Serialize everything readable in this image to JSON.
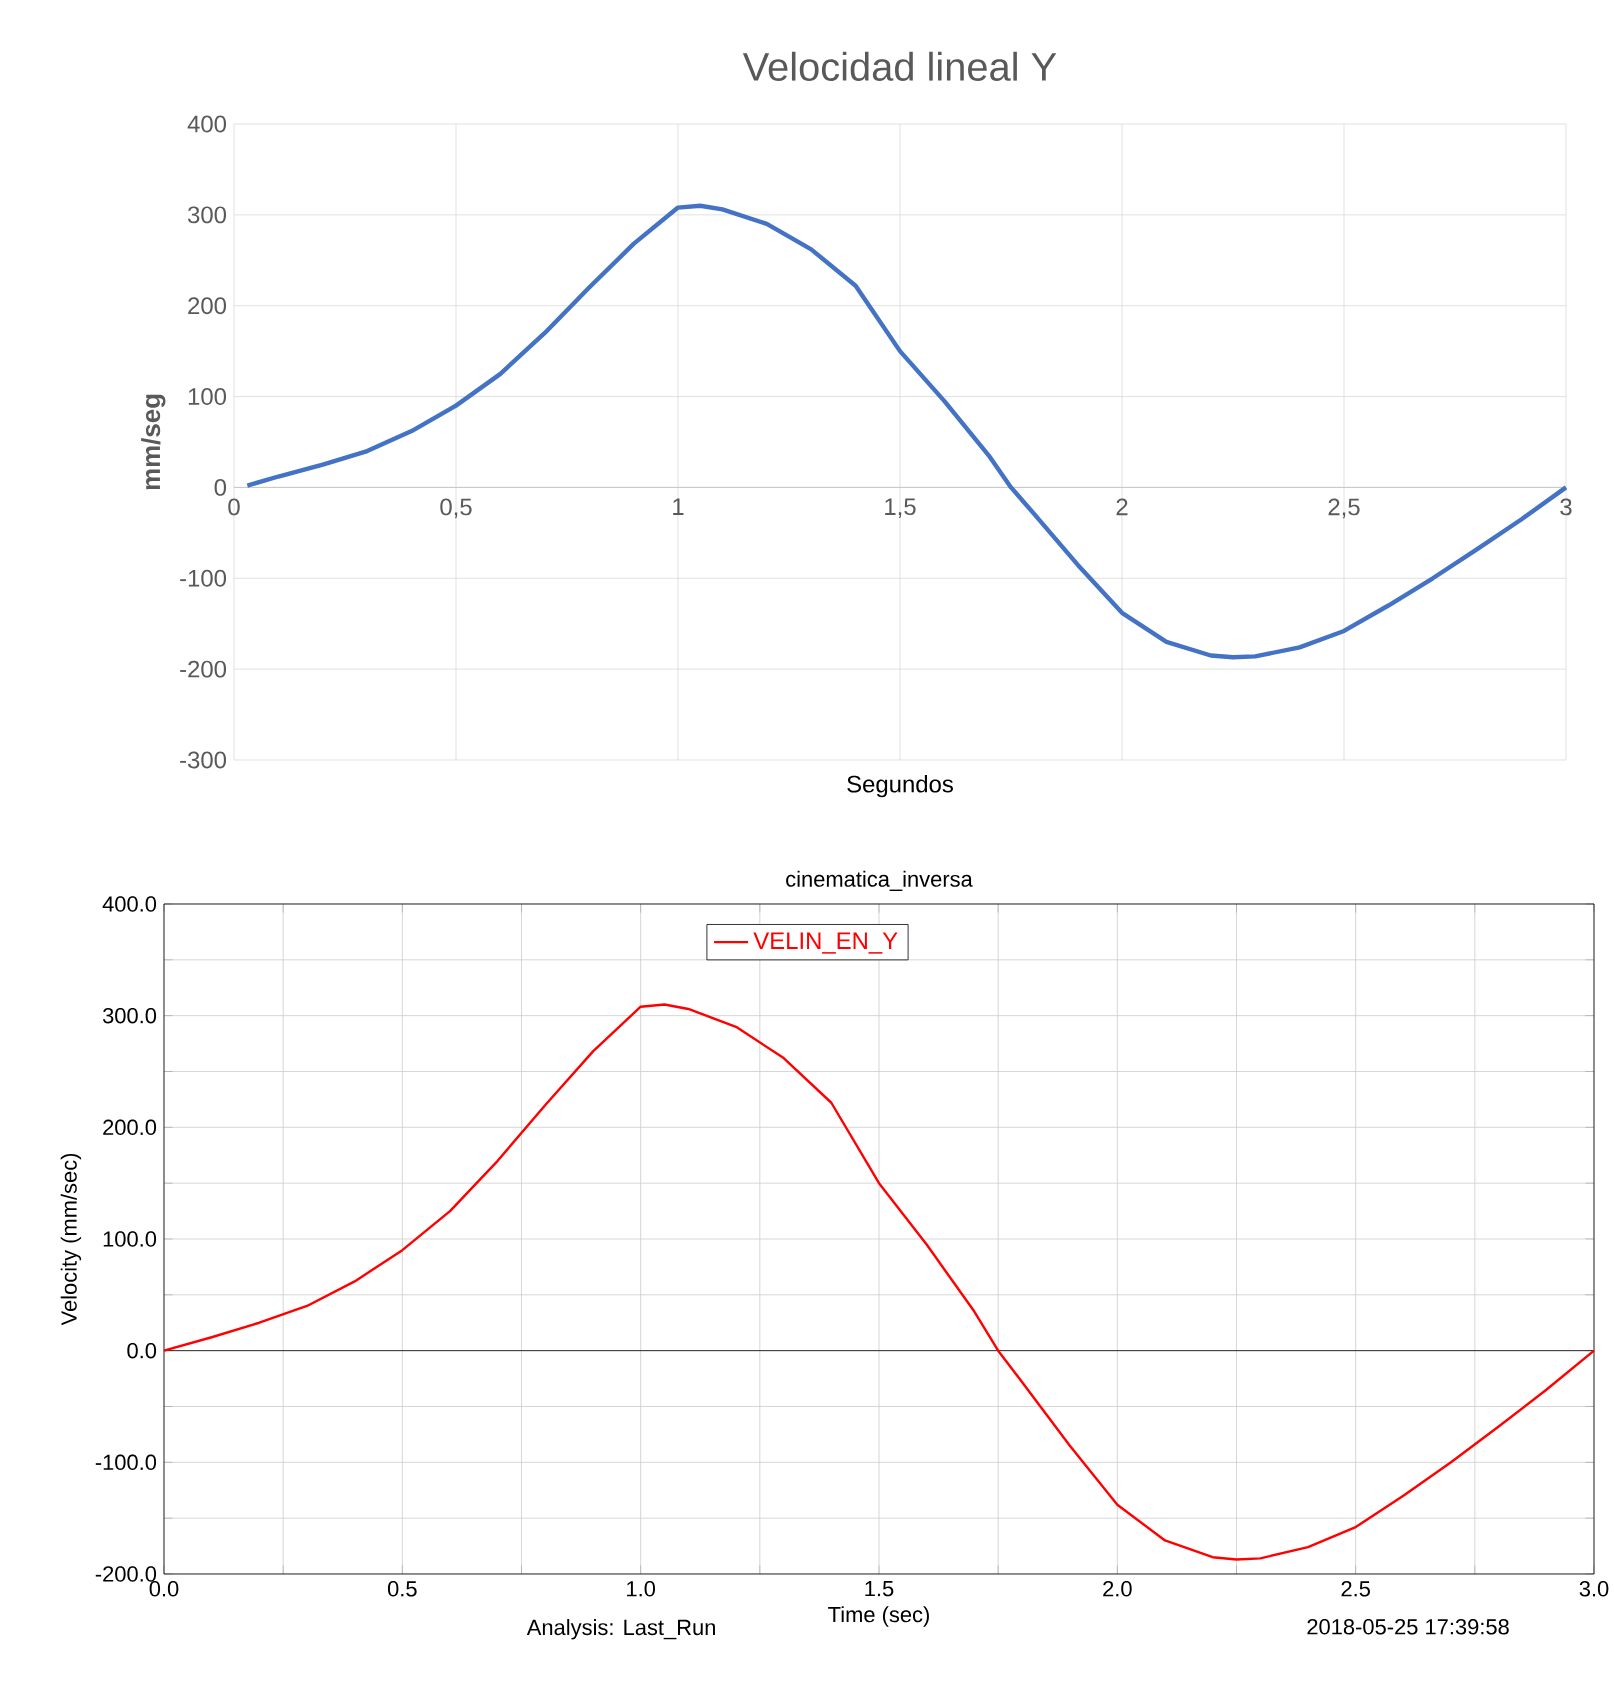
{
  "chart_data": [
    {
      "type": "line",
      "title": "Velocidad lineal Y",
      "xlabel": "Segundos",
      "ylabel": "mm/seg",
      "xlim": [
        0,
        3
      ],
      "ylim": [
        -300,
        400
      ],
      "xticks": [
        0,
        {
          "value": 0.5,
          "label": "0,5"
        },
        1,
        {
          "value": 1.5,
          "label": "1,5"
        },
        2,
        {
          "value": 2.5,
          "label": "2,5"
        },
        3
      ],
      "yticks": [
        -300,
        -200,
        -100,
        0,
        100,
        200,
        300,
        400
      ],
      "grid": true,
      "series": [
        {
          "color": "#4472c4",
          "x": [
            0.03,
            0.1,
            0.2,
            0.3,
            0.4,
            0.5,
            0.6,
            0.7,
            0.8,
            0.9,
            1.0,
            1.05,
            1.1,
            1.2,
            1.3,
            1.4,
            1.5,
            1.6,
            1.7,
            1.75,
            1.8,
            1.9,
            2.0,
            2.1,
            2.2,
            2.25,
            2.3,
            2.4,
            2.5,
            2.6,
            2.7,
            2.8,
            2.9,
            3.0
          ],
          "values": [
            2,
            12,
            25,
            40,
            62,
            90,
            125,
            170,
            220,
            268,
            308,
            310,
            306,
            290,
            262,
            222,
            150,
            95,
            35,
            0,
            -28,
            -85,
            -138,
            -170,
            -185,
            -187,
            -186,
            -176,
            -158,
            -130,
            -100,
            -68,
            -35,
            0
          ]
        }
      ]
    },
    {
      "type": "line",
      "title": "cinematica_inversa",
      "xlabel": "Time (sec)",
      "ylabel": "Velocity (mm/sec)",
      "annotations": [
        "Analysis:  Last_Run",
        "2018-05-25 17:39:58"
      ],
      "xlim": [
        0,
        3
      ],
      "ylim": [
        -200,
        400
      ],
      "xticks": [
        {
          "value": 0,
          "label": "0.0"
        },
        {
          "value": 0.25,
          "label": null
        },
        {
          "value": 0.5,
          "label": "0.5"
        },
        {
          "value": 0.75,
          "label": null
        },
        {
          "value": 1,
          "label": "1.0"
        },
        {
          "value": 1.25,
          "label": null
        },
        {
          "value": 1.5,
          "label": "1.5"
        },
        {
          "value": 1.75,
          "label": null
        },
        {
          "value": 2,
          "label": "2.0"
        },
        {
          "value": 2.25,
          "label": null
        },
        {
          "value": 2.5,
          "label": "2.5"
        },
        {
          "value": 2.75,
          "label": null
        },
        {
          "value": 3,
          "label": "3.0"
        }
      ],
      "yticks": [
        {
          "value": -200,
          "label": "-200.0"
        },
        {
          "value": -150,
          "label": null
        },
        {
          "value": -100,
          "label": "-100.0"
        },
        {
          "value": -50,
          "label": null
        },
        {
          "value": 0,
          "label": "0.0"
        },
        {
          "value": 50,
          "label": null
        },
        {
          "value": 100,
          "label": "100.0"
        },
        {
          "value": 150,
          "label": null
        },
        {
          "value": 200,
          "label": "200.0"
        },
        {
          "value": 250,
          "label": null
        },
        {
          "value": 300,
          "label": "300.0"
        },
        {
          "value": 350,
          "label": null
        },
        {
          "value": 400,
          "label": "400.0"
        }
      ],
      "grid": true,
      "legend": "top",
      "ref_lines": [
        {
          "axis": "y",
          "value": 0,
          "color": "#000000"
        }
      ],
      "series": [
        {
          "name": "VELIN_EN_Y",
          "color": "#ff0000",
          "x": [
            0,
            0.1,
            0.2,
            0.3,
            0.4,
            0.5,
            0.6,
            0.7,
            0.8,
            0.9,
            1.0,
            1.05,
            1.1,
            1.2,
            1.3,
            1.4,
            1.5,
            1.6,
            1.7,
            1.75,
            1.8,
            1.9,
            2.0,
            2.1,
            2.2,
            2.25,
            2.3,
            2.4,
            2.5,
            2.6,
            2.7,
            2.8,
            2.9,
            3.0
          ],
          "values": [
            0,
            12,
            25,
            40,
            62,
            90,
            125,
            170,
            220,
            268,
            308,
            310,
            306,
            290,
            262,
            222,
            150,
            95,
            35,
            0,
            -28,
            -85,
            -138,
            -170,
            -185,
            -187,
            -186,
            -176,
            -158,
            -130,
            -100,
            -68,
            -35,
            0
          ]
        }
      ]
    }
  ]
}
